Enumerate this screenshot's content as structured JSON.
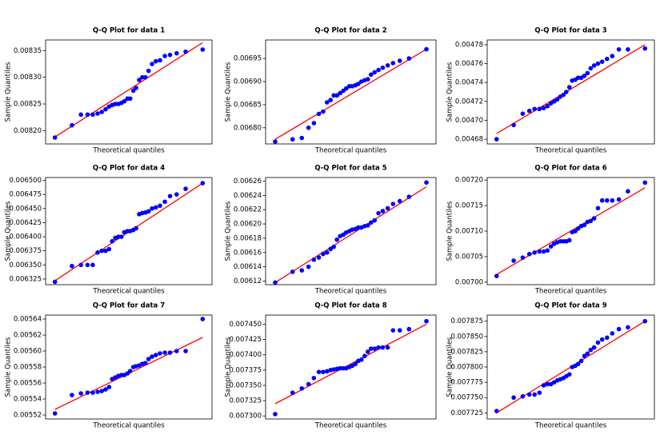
{
  "chart_data": [
    {
      "type": "scatter",
      "title": "Q-Q Plot for data 1",
      "x_label": "Theoretical quantiles",
      "y_label": "Sample Quantiles",
      "color": "#0000ff",
      "x": [
        -2.13,
        -1.64,
        -1.38,
        -1.19,
        -1.04,
        -0.9,
        -0.78,
        -0.67,
        -0.57,
        -0.48,
        -0.39,
        -0.3,
        -0.21,
        -0.13,
        -0.04,
        0.04,
        0.13,
        0.21,
        0.3,
        0.39,
        0.48,
        0.57,
        0.67,
        0.78,
        0.9,
        1.04,
        1.19,
        1.38,
        1.64,
        2.13
      ],
      "values": [
        0.008187,
        0.00821,
        0.00823,
        0.00823,
        0.00823,
        0.008232,
        0.008235,
        0.00824,
        0.008245,
        0.008248,
        0.00825,
        0.00825,
        0.008252,
        0.008255,
        0.00826,
        0.00826,
        0.008275,
        0.00828,
        0.008295,
        0.0083,
        0.0083,
        0.008312,
        0.008325,
        0.00833,
        0.008332,
        0.00834,
        0.008342,
        0.008345,
        0.008348,
        0.008352
      ],
      "fit": {
        "x": [
          -2.13,
          2.13
        ],
        "values": [
          0.008188,
          0.008365
        ],
        "color": "#ff0000"
      },
      "xlim": [
        -2.4,
        2.4
      ],
      "ylim": [
        0.008175,
        0.00837
      ],
      "yticks": [
        {
          "value": 0.0082,
          "label": "0.00820"
        },
        0.00825,
        {
          "value": 0.0083,
          "label": "0.00830"
        },
        0.00835
      ]
    },
    {
      "type": "scatter",
      "title": "Q-Q Plot for data 2",
      "x_label": "Theoretical quantiles",
      "y_label": "Sample Quantiles",
      "color": "#0000ff",
      "x": [
        -2.13,
        -1.64,
        -1.38,
        -1.19,
        -1.04,
        -0.9,
        -0.78,
        -0.67,
        -0.57,
        -0.48,
        -0.39,
        -0.3,
        -0.21,
        -0.13,
        -0.04,
        0.04,
        0.13,
        0.21,
        0.3,
        0.39,
        0.48,
        0.57,
        0.67,
        0.78,
        0.9,
        1.04,
        1.19,
        1.38,
        1.64,
        2.13
      ],
      "values": [
        0.00677,
        0.006775,
        0.006778,
        0.0068,
        0.00681,
        0.00683,
        0.006835,
        0.006855,
        0.00686,
        0.00687,
        0.00687,
        0.006875,
        0.00688,
        0.006885,
        0.00689,
        0.00689,
        0.006892,
        0.006895,
        0.0069,
        0.006903,
        0.006905,
        0.006915,
        0.00692,
        0.006925,
        0.00693,
        0.006935,
        0.00694,
        0.006945,
        0.00695,
        0.00697
      ],
      "fit": {
        "x": [
          -2.13,
          2.13
        ],
        "values": [
          0.006775,
          0.00697
        ],
        "color": "#ff0000"
      },
      "xlim": [
        -2.4,
        2.4
      ],
      "ylim": [
        0.006765,
        0.00699
      ],
      "yticks": [
        {
          "value": 0.0068,
          "label": "0.00680"
        },
        0.00685,
        {
          "value": 0.0069,
          "label": "0.00690"
        },
        0.00695
      ]
    },
    {
      "type": "scatter",
      "title": "Q-Q Plot for data 3",
      "x_label": "Theoretical quantiles",
      "y_label": "Sample Quantiles",
      "color": "#0000ff",
      "x": [
        -2.13,
        -1.64,
        -1.38,
        -1.19,
        -1.04,
        -0.9,
        -0.78,
        -0.67,
        -0.57,
        -0.48,
        -0.39,
        -0.3,
        -0.21,
        -0.13,
        -0.04,
        0.04,
        0.13,
        0.21,
        0.3,
        0.39,
        0.48,
        0.57,
        0.67,
        0.78,
        0.9,
        1.04,
        1.19,
        1.38,
        1.64,
        2.13
      ],
      "values": [
        0.00468,
        0.004695,
        0.004707,
        0.00471,
        0.004712,
        0.004712,
        0.004713,
        0.004715,
        0.004718,
        0.00472,
        0.004722,
        0.004725,
        0.004727,
        0.00473,
        0.004735,
        0.004742,
        0.004743,
        0.004745,
        0.004745,
        0.004747,
        0.00475,
        0.004755,
        0.004758,
        0.00476,
        0.004762,
        0.004765,
        0.004768,
        0.004775,
        0.004775,
        0.004776
      ],
      "fit": {
        "x": [
          -2.13,
          2.13
        ],
        "values": [
          0.004686,
          0.00478
        ],
        "color": "#ff0000"
      },
      "xlim": [
        -2.4,
        2.4
      ],
      "ylim": [
        0.004675,
        0.004785
      ],
      "yticks": [
        0.00468,
        {
          "value": 0.0047,
          "label": "0.00470"
        },
        0.00472,
        0.00474,
        0.00476,
        0.00478
      ]
    },
    {
      "type": "scatter",
      "title": "Q-Q Plot for data 4",
      "x_label": "Theoretical quantiles",
      "y_label": "Sample Quantiles",
      "color": "#0000ff",
      "x": [
        -2.13,
        -1.64,
        -1.38,
        -1.19,
        -1.04,
        -0.9,
        -0.78,
        -0.67,
        -0.57,
        -0.48,
        -0.39,
        -0.3,
        -0.21,
        -0.13,
        -0.04,
        0.04,
        0.13,
        0.21,
        0.3,
        0.39,
        0.48,
        0.57,
        0.67,
        0.78,
        0.9,
        1.04,
        1.19,
        1.38,
        1.64,
        2.13
      ],
      "values": [
        0.00632,
        0.006348,
        0.00635,
        0.00635,
        0.00635,
        0.006372,
        0.006375,
        0.006375,
        0.006378,
        0.006392,
        0.006398,
        0.0064,
        0.0064,
        0.006408,
        0.00641,
        0.00641,
        0.006412,
        0.006415,
        0.00644,
        0.006442,
        0.006443,
        0.006445,
        0.00645,
        0.006452,
        0.006455,
        0.006462,
        0.006472,
        0.006475,
        0.006485,
        0.006495
      ],
      "fit": {
        "x": [
          -2.13,
          2.13
        ],
        "values": [
          0.006322,
          0.006495
        ],
        "color": "#ff0000"
      },
      "xlim": [
        -2.4,
        2.4
      ],
      "ylim": [
        0.006315,
        0.006505
      ],
      "yticks": [
        0.006325,
        {
          "value": 0.00635,
          "label": "0.006350"
        },
        0.006375,
        {
          "value": 0.0064,
          "label": "0.006400"
        },
        0.006425,
        {
          "value": 0.00645,
          "label": "0.006450"
        },
        0.006475,
        {
          "value": 0.0065,
          "label": "0.006500"
        }
      ]
    },
    {
      "type": "scatter",
      "title": "Q-Q Plot for data 5",
      "x_label": "Theoretical quantiles",
      "y_label": "Sample Quantiles",
      "color": "#0000ff",
      "x": [
        -2.13,
        -1.64,
        -1.38,
        -1.19,
        -1.04,
        -0.9,
        -0.78,
        -0.67,
        -0.57,
        -0.48,
        -0.39,
        -0.3,
        -0.21,
        -0.13,
        -0.04,
        0.04,
        0.13,
        0.21,
        0.3,
        0.39,
        0.48,
        0.57,
        0.67,
        0.78,
        0.9,
        1.04,
        1.19,
        1.38,
        1.64,
        2.13
      ],
      "values": [
        0.006118,
        0.006133,
        0.006135,
        0.00614,
        0.00615,
        0.006153,
        0.006158,
        0.00616,
        0.006165,
        0.006168,
        0.006178,
        0.006183,
        0.006185,
        0.006188,
        0.00619,
        0.006192,
        0.006193,
        0.006195,
        0.006195,
        0.006197,
        0.006198,
        0.006202,
        0.006205,
        0.006215,
        0.006218,
        0.006222,
        0.006228,
        0.006232,
        0.006238,
        0.006258
      ],
      "fit": {
        "x": [
          -2.13,
          2.13
        ],
        "values": [
          0.006118,
          0.006252
        ],
        "color": "#ff0000"
      },
      "xlim": [
        -2.4,
        2.4
      ],
      "ylim": [
        0.006115,
        0.006265
      ],
      "yticks": [
        0.00612,
        0.00614,
        0.00616,
        0.00618,
        {
          "value": 0.0062,
          "label": "0.00620"
        },
        0.00622,
        0.00624,
        0.00626
      ]
    },
    {
      "type": "scatter",
      "title": "Q-Q Plot for data 6",
      "x_label": "Theoretical quantiles",
      "y_label": "Sample Quantiles",
      "color": "#0000ff",
      "x": [
        -2.13,
        -1.64,
        -1.38,
        -1.19,
        -1.04,
        -0.9,
        -0.78,
        -0.67,
        -0.57,
        -0.48,
        -0.39,
        -0.3,
        -0.21,
        -0.13,
        -0.04,
        0.04,
        0.13,
        0.21,
        0.3,
        0.39,
        0.48,
        0.57,
        0.67,
        0.78,
        0.9,
        1.04,
        1.19,
        1.38,
        1.64,
        2.13
      ],
      "values": [
        0.007012,
        0.007042,
        0.007048,
        0.007055,
        0.007058,
        0.00706,
        0.00706,
        0.007062,
        0.00707,
        0.007075,
        0.007078,
        0.00708,
        0.00708,
        0.00708,
        0.007082,
        0.007098,
        0.0071,
        0.007105,
        0.00711,
        0.007112,
        0.007118,
        0.00712,
        0.007125,
        0.007145,
        0.00716,
        0.00716,
        0.00716,
        0.007162,
        0.007178,
        0.007195
      ],
      "fit": {
        "x": [
          -2.13,
          2.13
        ],
        "values": [
          0.007015,
          0.007185
        ],
        "color": "#ff0000"
      },
      "xlim": [
        -2.4,
        2.4
      ],
      "ylim": [
        0.006995,
        0.007205
      ],
      "yticks": [
        {
          "value": 0.007,
          "label": "0.00700"
        },
        0.00705,
        {
          "value": 0.0071,
          "label": "0.00710"
        },
        0.00715,
        {
          "value": 0.0072,
          "label": "0.00720"
        }
      ]
    },
    {
      "type": "scatter",
      "title": "Q-Q Plot for data 7",
      "x_label": "Theoretical quantiles",
      "y_label": "Sample Quantiles",
      "color": "#0000ff",
      "x": [
        -2.13,
        -1.64,
        -1.38,
        -1.19,
        -1.04,
        -0.9,
        -0.78,
        -0.67,
        -0.57,
        -0.48,
        -0.39,
        -0.3,
        -0.21,
        -0.13,
        -0.04,
        0.04,
        0.13,
        0.21,
        0.3,
        0.39,
        0.48,
        0.57,
        0.67,
        0.78,
        0.9,
        1.04,
        1.19,
        1.38,
        1.64,
        2.13
      ],
      "values": [
        0.005522,
        0.005545,
        0.005547,
        0.005548,
        0.005548,
        0.005549,
        0.00555,
        0.005552,
        0.005555,
        0.005565,
        0.005567,
        0.005569,
        0.00557,
        0.00557,
        0.005572,
        0.005575,
        0.00558,
        0.005581,
        0.005582,
        0.005584,
        0.005585,
        0.00559,
        0.005593,
        0.005595,
        0.005597,
        0.005598,
        0.005598,
        0.0056,
        0.0056,
        0.00564
      ],
      "fit": {
        "x": [
          -2.13,
          2.13
        ],
        "values": [
          0.005527,
          0.005617
        ],
        "color": "#ff0000"
      },
      "xlim": [
        -2.4,
        2.4
      ],
      "ylim": [
        0.005515,
        0.005645
      ],
      "yticks": [
        0.00552,
        0.00554,
        0.00556,
        0.00558,
        {
          "value": 0.0056,
          "label": "0.00560"
        },
        0.00562,
        0.00564
      ]
    },
    {
      "type": "scatter",
      "title": "Q-Q Plot for data 8",
      "x_label": "Theoretical quantiles",
      "y_label": "Sample Quantiles",
      "color": "#0000ff",
      "x": [
        -2.13,
        -1.64,
        -1.38,
        -1.19,
        -1.04,
        -0.9,
        -0.78,
        -0.67,
        -0.57,
        -0.48,
        -0.39,
        -0.3,
        -0.21,
        -0.13,
        -0.04,
        0.04,
        0.13,
        0.21,
        0.3,
        0.39,
        0.48,
        0.57,
        0.67,
        0.78,
        0.9,
        1.04,
        1.19,
        1.38,
        1.64,
        2.13
      ],
      "values": [
        0.007303,
        0.007338,
        0.007345,
        0.007352,
        0.007362,
        0.007372,
        0.007372,
        0.007373,
        0.007375,
        0.007376,
        0.007377,
        0.007378,
        0.007378,
        0.007378,
        0.00738,
        0.007382,
        0.007385,
        0.00739,
        0.007392,
        0.007398,
        0.007405,
        0.00741,
        0.00741,
        0.007412,
        0.007412,
        0.007412,
        0.00744,
        0.00744,
        0.007442,
        0.007455
      ],
      "fit": {
        "x": [
          -2.13,
          2.13
        ],
        "values": [
          0.00732,
          0.00745
        ],
        "color": "#ff0000"
      },
      "xlim": [
        -2.4,
        2.4
      ],
      "ylim": [
        0.007295,
        0.007465
      ],
      "yticks": [
        {
          "value": 0.0073,
          "label": "0.007300"
        },
        0.007325,
        {
          "value": 0.00735,
          "label": "0.007350"
        },
        0.007375,
        {
          "value": 0.0074,
          "label": "0.007400"
        },
        0.007425,
        {
          "value": 0.00745,
          "label": "0.007450"
        }
      ]
    },
    {
      "type": "scatter",
      "title": "Q-Q Plot for data 9",
      "x_label": "Theoretical quantiles",
      "y_label": "Sample Quantiles",
      "color": "#0000ff",
      "x": [
        -2.13,
        -1.64,
        -1.38,
        -1.19,
        -1.04,
        -0.9,
        -0.78,
        -0.67,
        -0.57,
        -0.48,
        -0.39,
        -0.3,
        -0.21,
        -0.13,
        -0.04,
        0.04,
        0.13,
        0.21,
        0.3,
        0.39,
        0.48,
        0.57,
        0.67,
        0.78,
        0.9,
        1.04,
        1.19,
        1.38,
        1.64,
        2.13
      ],
      "values": [
        0.007728,
        0.00775,
        0.007752,
        0.007755,
        0.007755,
        0.007758,
        0.00777,
        0.007772,
        0.007772,
        0.007775,
        0.007778,
        0.00778,
        0.007782,
        0.007785,
        0.007788,
        0.0078,
        0.007802,
        0.007805,
        0.00781,
        0.007818,
        0.007822,
        0.007828,
        0.007832,
        0.00784,
        0.007845,
        0.007848,
        0.007855,
        0.007862,
        0.007865,
        0.007875
      ],
      "fit": {
        "x": [
          -2.13,
          2.13
        ],
        "values": [
          0.007725,
          0.007875
        ],
        "color": "#ff0000"
      },
      "xlim": [
        -2.4,
        2.4
      ],
      "ylim": [
        0.007715,
        0.007885
      ],
      "yticks": [
        0.007725,
        {
          "value": 0.00775,
          "label": "0.007750"
        },
        0.007775,
        {
          "value": 0.0078,
          "label": "0.007800"
        },
        0.007825,
        {
          "value": 0.00785,
          "label": "0.007850"
        },
        0.007875
      ]
    }
  ]
}
